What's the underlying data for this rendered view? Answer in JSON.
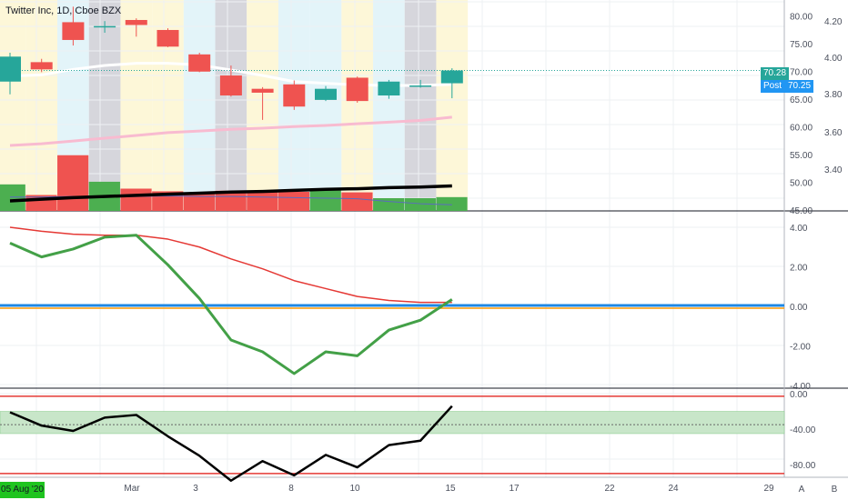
{
  "header": {
    "title": "Twitter Inc, 1D, Cboe BZX"
  },
  "footer": {
    "start_date": "05 Aug '20",
    "btn_a": "A",
    "btn_b": "B"
  },
  "tags": {
    "post_label": "Post",
    "price_tag": "70.28",
    "post_tag": "70.25"
  },
  "colors": {
    "up": "#26a69a",
    "down": "#ef5350",
    "vol_up": "#4caf50",
    "vol_down": "#ef5350",
    "ema_fast": "#ffffff",
    "ema_slow": "#f8bbd0",
    "trend": "#000000",
    "macd": "#43a047",
    "signal": "#e53935",
    "zero": "#1e88e5",
    "wr": "#000000",
    "wr_band": "#c8e6c9"
  },
  "chart_data": [
    {
      "type": "candlestick",
      "title": "Twitter Inc, 1D, Cboe BZX",
      "ylim": [
        45,
        83
      ],
      "right_axis_ticks": [
        "80.00",
        "75.00",
        "70.00",
        "65.00",
        "60.00",
        "55.00",
        "50.00",
        "45.00"
      ],
      "inner_axis_ticks": [
        "4.20",
        "4.00",
        "3.80",
        "3.60",
        "3.40"
      ],
      "x_tick_labels": [
        "Mar",
        "3",
        "8",
        "10",
        "15",
        "17",
        "22",
        "24",
        "29"
      ],
      "candles": [
        {
          "open": 68.3,
          "close": 72.8,
          "high": 73.5,
          "low": 66.0
        },
        {
          "open": 71.8,
          "close": 70.5,
          "high": 72.4,
          "low": 70.0
        },
        {
          "open": 79.0,
          "close": 75.8,
          "high": 81.8,
          "low": 74.8
        },
        {
          "open": 78.2,
          "close": 78.3,
          "high": 79.2,
          "low": 77.1
        },
        {
          "open": 79.4,
          "close": 78.5,
          "high": 79.7,
          "low": 76.4
        },
        {
          "open": 77.6,
          "close": 74.6,
          "high": 77.9,
          "low": 74.5
        },
        {
          "open": 73.2,
          "close": 70.1,
          "high": 73.5,
          "low": 70.0
        },
        {
          "open": 69.4,
          "close": 65.8,
          "high": 71.2,
          "low": 65.6
        },
        {
          "open": 67.0,
          "close": 66.3,
          "high": 67.3,
          "low": 61.4
        },
        {
          "open": 67.8,
          "close": 63.8,
          "high": 68.5,
          "low": 63.2
        },
        {
          "open": 65.0,
          "close": 67.0,
          "high": 67.5,
          "low": 64.8
        },
        {
          "open": 69.0,
          "close": 64.8,
          "high": 69.2,
          "low": 64.5
        },
        {
          "open": 65.8,
          "close": 68.3,
          "high": 68.6,
          "low": 65.2
        },
        {
          "open": 67.5,
          "close": 67.6,
          "high": 68.6,
          "low": 67.2
        },
        {
          "open": 68.0,
          "close": 70.3,
          "high": 70.7,
          "low": 65.3
        }
      ],
      "volume": {
        "values": [
          5.0,
          3.0,
          10.5,
          5.5,
          4.2,
          3.7,
          3.3,
          3.8,
          3.8,
          3.6,
          4.0,
          3.5,
          2.4,
          2.4,
          2.6
        ],
        "direction": [
          "up",
          "down",
          "down",
          "up",
          "down",
          "down",
          "down",
          "down",
          "down",
          "down",
          "up",
          "down",
          "up",
          "up",
          "up"
        ]
      },
      "ema_fast": [
        69.3,
        69.5,
        70.5,
        71.2,
        71.6,
        71.6,
        71.3,
        70.4,
        69.4,
        68.3,
        68.0,
        67.7,
        67.6,
        67.6,
        67.8
      ],
      "ema_slow": [
        56.8,
        57.1,
        57.6,
        58.1,
        58.6,
        59.1,
        59.4,
        59.7,
        59.9,
        60.2,
        60.4,
        60.7,
        61.0,
        61.3,
        61.9
      ],
      "trend": [
        46.8,
        47.1,
        47.4,
        47.6,
        47.8,
        48.0,
        48.2,
        48.4,
        48.5,
        48.7,
        48.9,
        49.0,
        49.2,
        49.3,
        49.5
      ],
      "volume_ma": [
        47.5,
        47.5,
        47.6,
        47.6,
        47.6,
        47.7,
        47.6,
        47.6,
        47.5,
        47.4,
        47.3,
        47.2,
        46.7,
        46.3,
        46.1
      ]
    },
    {
      "type": "line",
      "ylim": [
        -4.0,
        4.3
      ],
      "y_ticks": [
        "4.00",
        "2.00",
        "0.00",
        "-2.00",
        "-4.00"
      ],
      "series": [
        {
          "key": "macd",
          "values": [
            3.2,
            2.5,
            2.9,
            3.5,
            3.6,
            2.1,
            0.4,
            -1.7,
            -2.3,
            -3.4,
            -2.3,
            -2.5,
            -1.2,
            -0.7,
            0.35
          ]
        },
        {
          "key": "signal",
          "values": [
            4.0,
            3.8,
            3.65,
            3.6,
            3.6,
            3.4,
            3.0,
            2.4,
            1.9,
            1.3,
            0.9,
            0.5,
            0.3,
            0.2,
            0.2
          ]
        }
      ],
      "reference_line": 0
    },
    {
      "type": "line",
      "ylim": [
        -100,
        0
      ],
      "y_ticks": [
        "0.00",
        "-40.00",
        "-80.00"
      ],
      "band": [
        -20,
        -45
      ],
      "midline": -35,
      "limits": [
        -3,
        -90
      ],
      "series": [
        {
          "key": "wr",
          "values": [
            -21,
            -36,
            -42,
            -27,
            -24,
            -48,
            -70,
            -98,
            -76,
            -92,
            -69,
            -83,
            -58,
            -53,
            -14
          ]
        }
      ]
    }
  ]
}
